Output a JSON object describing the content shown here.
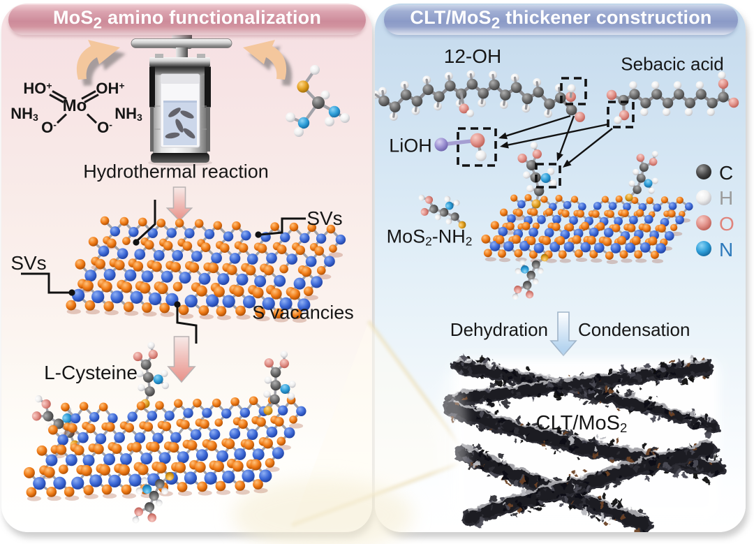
{
  "left_panel": {
    "title": [
      {
        "t": "MoS"
      },
      {
        "t": "2",
        "sub": true
      },
      {
        "t": " amino functionalization"
      }
    ],
    "formula": {
      "ho_plus": [
        {
          "t": "HO"
        },
        {
          "t": "+",
          "sup": true
        }
      ],
      "oh_plus": [
        {
          "t": "OH"
        },
        {
          "t": "+",
          "sup": true
        }
      ],
      "mo": [
        {
          "t": "Mo"
        }
      ],
      "nh3_left": [
        {
          "t": "NH"
        },
        {
          "t": "3",
          "sub": true
        }
      ],
      "nh3_right": [
        {
          "t": "NH"
        },
        {
          "t": "3",
          "sub": true
        }
      ],
      "o_minus_left": [
        {
          "t": "O"
        },
        {
          "t": "-",
          "sup": true
        }
      ],
      "o_minus_right": [
        {
          "t": "O"
        },
        {
          "t": "-",
          "sup": true
        }
      ]
    },
    "hydrothermal_label": [
      {
        "t": "Hydrothermal reaction"
      }
    ],
    "svs_left": [
      {
        "t": "SVs"
      }
    ],
    "svs_right": [
      {
        "t": "SVs"
      }
    ],
    "s_vacancies": [
      {
        "t": "S vacancies"
      }
    ],
    "l_cysteine": [
      {
        "t": "L-Cysteine"
      }
    ]
  },
  "right_panel": {
    "title": [
      {
        "t": "CLT/MoS"
      },
      {
        "t": "2",
        "sub": true
      },
      {
        "t": " thickener construction"
      }
    ],
    "label_12oh": [
      {
        "t": "12-OH"
      }
    ],
    "label_sebacic": [
      {
        "t": "Sebacic acid"
      }
    ],
    "label_lioh": [
      {
        "t": "LiOH"
      }
    ],
    "label_mos2nh2": [
      {
        "t": "MoS"
      },
      {
        "t": "2",
        "sub": true
      },
      {
        "t": "-NH"
      },
      {
        "t": "2",
        "sub": true
      }
    ],
    "dehydration": [
      {
        "t": "Dehydration"
      }
    ],
    "condensation": [
      {
        "t": "Condensation"
      }
    ],
    "clt_mos2": [
      {
        "t": "CLT/MoS"
      },
      {
        "t": "2",
        "sub": true
      }
    ],
    "legend": {
      "c": {
        "symbol": "C",
        "color": "#161616"
      },
      "h": {
        "symbol": "H",
        "color": "#9b9b9b"
      },
      "o": {
        "symbol": "O",
        "color": "#e0837b"
      },
      "n": {
        "symbol": "N",
        "color": "#2d79bb"
      }
    }
  },
  "colors": {
    "sulfur_orange": [
      "#ffc27d",
      "#f07b16",
      "#a74a02"
    ],
    "mo_blue": [
      "#8fb0f4",
      "#3f6bd8",
      "#1c3d9d"
    ],
    "carbon_gray": [
      "#b0b0b0",
      "#6d6d6d",
      "#3c3c3c"
    ],
    "hydrogen_white": [
      "#ffffff",
      "#efefef",
      "#bdbdc2"
    ],
    "oxygen_pink": [
      "#f8cdc7",
      "#e2938b",
      "#bb5c53"
    ],
    "nitrogen_cyan": [
      "#8ed5f6",
      "#2f9fd9",
      "#14679c"
    ],
    "thiol_gold": [
      "#ffd98c",
      "#e2a022",
      "#9c6a06"
    ],
    "lithium_purple": [
      "#d9d3f2",
      "#9b90d2",
      "#6a5fa8"
    ],
    "stick_gray": "#a2a2a8",
    "pink_arrow": [
      "#f7eae8",
      "#e89088"
    ],
    "blue_arrow": [
      "#fdfeff",
      "#a8ccec"
    ],
    "swoosh_tan": "#f4c79d",
    "fiber_dark": "#1f1f24"
  }
}
